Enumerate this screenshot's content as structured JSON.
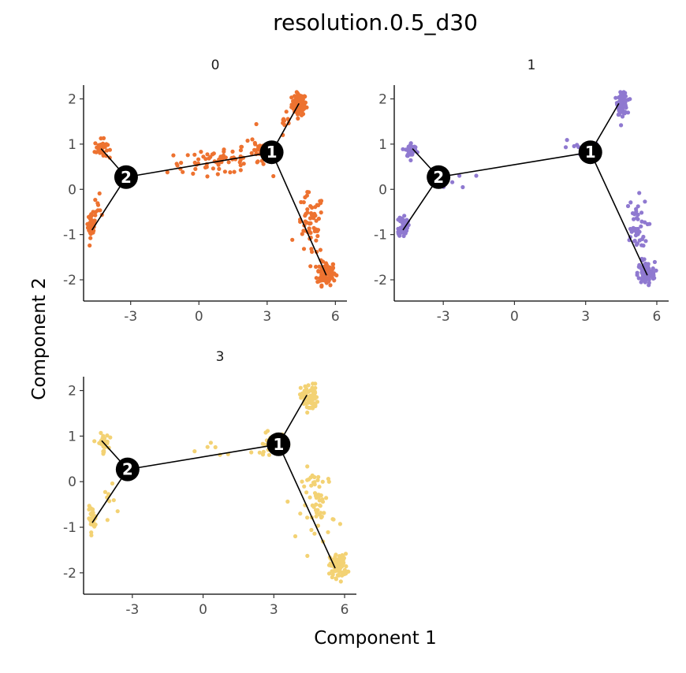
{
  "chart_data": {
    "type": "scatter",
    "title": "resolution.0.5_d30",
    "xlabel": "Component 1",
    "ylabel": "Component 2",
    "xlim": [
      -5.0,
      6.3
    ],
    "ylim": [
      -2.4,
      2.2
    ],
    "xticks": [
      -3,
      0,
      3,
      6
    ],
    "xtick_labels": [
      "-3",
      "0",
      "3",
      "6"
    ],
    "yticks": [
      -2,
      -1,
      0,
      1,
      2
    ],
    "ytick_labels": [
      "-2",
      "-1",
      "0",
      "1",
      "2"
    ],
    "grid": false,
    "trajectory": {
      "nodes": [
        {
          "label": "1",
          "x": 3.2,
          "y": 0.82
        },
        {
          "label": "2",
          "x": -3.2,
          "y": 0.27
        }
      ],
      "edges": [
        [
          [
            -3.2,
            0.27
          ],
          [
            3.2,
            0.82
          ]
        ],
        [
          [
            3.2,
            0.82
          ],
          [
            4.4,
            1.9
          ]
        ],
        [
          [
            3.2,
            0.82
          ],
          [
            5.6,
            -1.9
          ]
        ],
        [
          [
            -3.2,
            0.27
          ],
          [
            -4.3,
            0.9
          ]
        ],
        [
          [
            -3.2,
            0.27
          ],
          [
            -4.7,
            -0.9
          ]
        ]
      ]
    },
    "panels": [
      {
        "name": "0",
        "color": "#ED7230",
        "clusters": [
          {
            "x": 4.4,
            "y": 1.88,
            "sx": 0.16,
            "sy": 0.12,
            "n": 80
          },
          {
            "x": 5.6,
            "y": -1.85,
            "sx": 0.2,
            "sy": 0.13,
            "n": 110
          },
          {
            "x": -4.3,
            "y": 0.9,
            "sx": 0.14,
            "sy": 0.1,
            "n": 40
          },
          {
            "x": -4.72,
            "y": -0.8,
            "sx": 0.08,
            "sy": 0.13,
            "n": 45
          },
          {
            "x": 0.8,
            "y": 0.6,
            "sx": 1.1,
            "sy": 0.12,
            "n": 65
          },
          {
            "x": 2.7,
            "y": 0.95,
            "sx": 0.4,
            "sy": 0.15,
            "n": 30
          },
          {
            "x": 4.9,
            "y": -0.8,
            "sx": 0.3,
            "sy": 0.35,
            "n": 60
          },
          {
            "x": 3.8,
            "y": 1.35,
            "sx": 0.15,
            "sy": 0.15,
            "n": 10
          },
          {
            "x": -4.4,
            "y": -0.35,
            "sx": 0.15,
            "sy": 0.2,
            "n": 10
          }
        ]
      },
      {
        "name": "1",
        "color": "#8F79D0",
        "clusters": [
          {
            "x": 4.55,
            "y": 1.9,
            "sx": 0.1,
            "sy": 0.12,
            "n": 100
          },
          {
            "x": 5.55,
            "y": -1.85,
            "sx": 0.18,
            "sy": 0.12,
            "n": 90
          },
          {
            "x": -4.35,
            "y": 0.87,
            "sx": 0.12,
            "sy": 0.08,
            "n": 45
          },
          {
            "x": -4.7,
            "y": -0.8,
            "sx": 0.1,
            "sy": 0.12,
            "n": 55
          },
          {
            "x": 5.1,
            "y": -0.9,
            "sx": 0.25,
            "sy": 0.35,
            "n": 45
          },
          {
            "x": 2.8,
            "y": 0.9,
            "sx": 0.35,
            "sy": 0.1,
            "n": 8
          },
          {
            "x": -2.5,
            "y": 0.2,
            "sx": 0.4,
            "sy": 0.1,
            "n": 5
          }
        ]
      },
      {
        "name": "3",
        "color": "#F3D274",
        "clusters": [
          {
            "x": 4.5,
            "y": 1.85,
            "sx": 0.18,
            "sy": 0.15,
            "n": 70
          },
          {
            "x": 5.75,
            "y": -1.85,
            "sx": 0.18,
            "sy": 0.13,
            "n": 95
          },
          {
            "x": -4.25,
            "y": 0.85,
            "sx": 0.12,
            "sy": 0.1,
            "n": 35
          },
          {
            "x": -4.7,
            "y": -0.8,
            "sx": 0.08,
            "sy": 0.12,
            "n": 35
          },
          {
            "x": 4.9,
            "y": -0.5,
            "sx": 0.35,
            "sy": 0.4,
            "n": 60
          },
          {
            "x": 2.9,
            "y": 0.85,
            "sx": 0.4,
            "sy": 0.12,
            "n": 25
          },
          {
            "x": 0.5,
            "y": 0.7,
            "sx": 0.7,
            "sy": 0.1,
            "n": 6
          },
          {
            "x": -3.8,
            "y": -0.4,
            "sx": 0.2,
            "sy": 0.15,
            "n": 8
          }
        ]
      }
    ]
  }
}
